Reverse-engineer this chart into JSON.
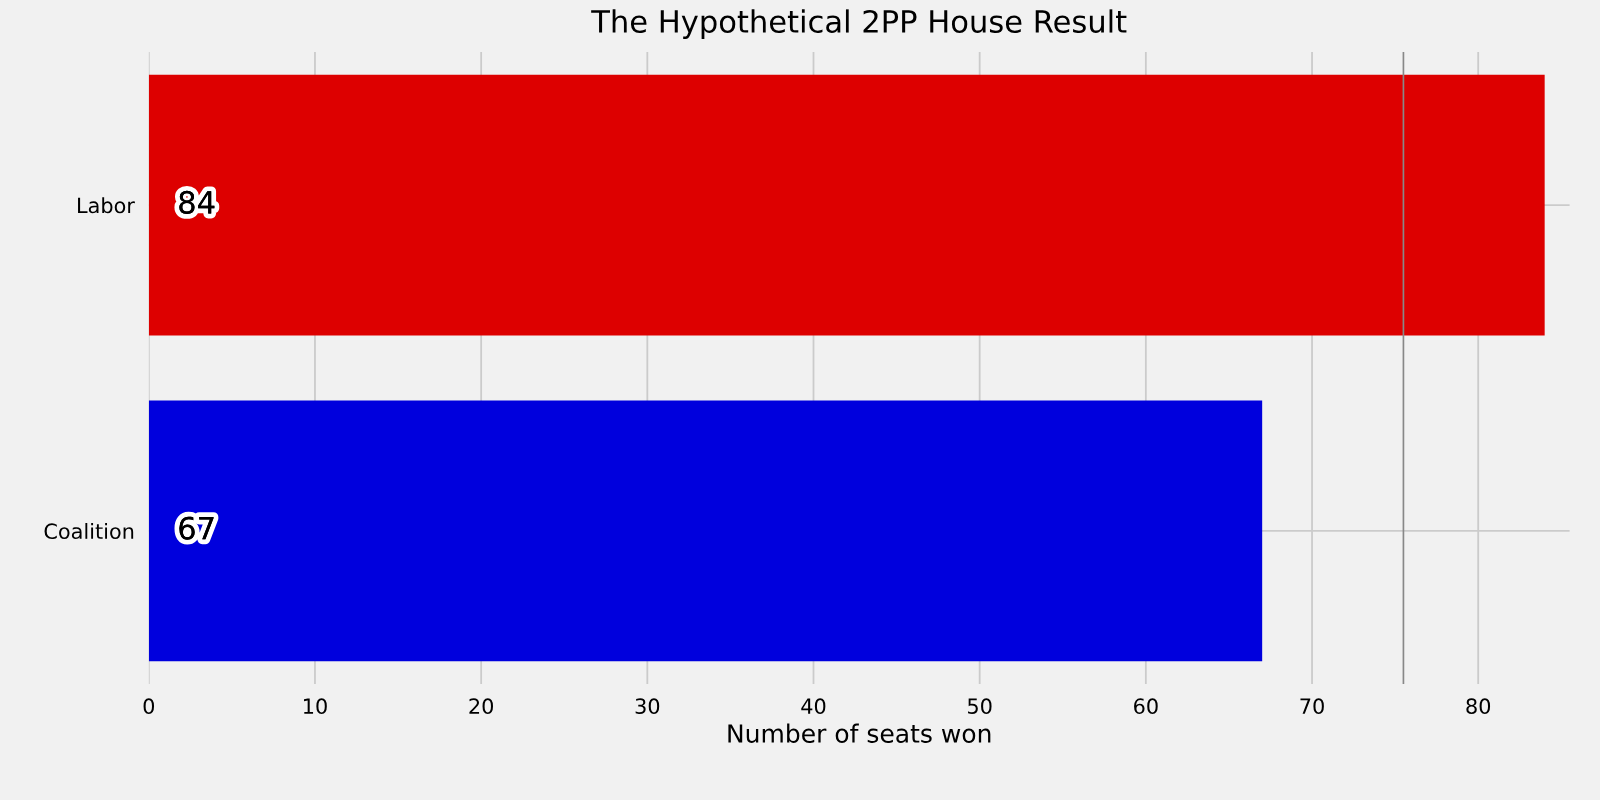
{
  "chart_data": {
    "type": "bar",
    "orientation": "horizontal",
    "title": "The Hypothetical 2PP House Result",
    "xlabel": "Number of seats won",
    "categories": [
      "Labor",
      "Coalition"
    ],
    "values": [
      84,
      67
    ],
    "colors": [
      "#dd0000",
      "#0000dd"
    ],
    "xlim": [
      0,
      85.5
    ],
    "xticks": [
      0,
      10,
      20,
      30,
      40,
      50,
      60,
      70,
      80
    ],
    "grid": true,
    "data_labels": true,
    "ref_lines": [
      {
        "axis": "x",
        "value": 75.5,
        "color": "#888888"
      }
    ]
  }
}
